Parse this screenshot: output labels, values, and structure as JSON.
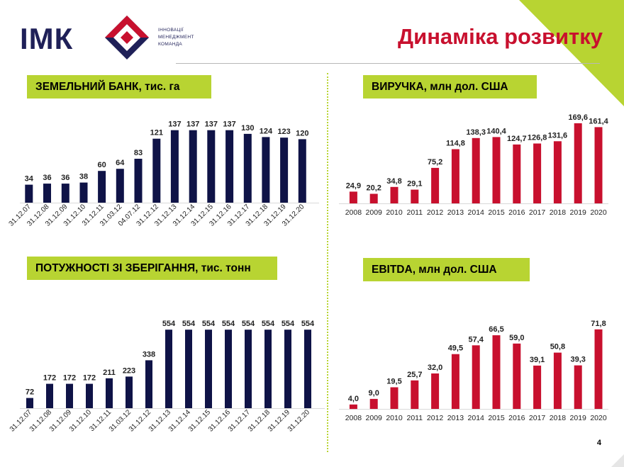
{
  "brand": {
    "logo_text": "ІМК",
    "tagline": [
      "ІННОВАЦІЇ",
      "МЕНЕДЖМЕНТ",
      "КОМАНДА"
    ]
  },
  "page": {
    "title": "Динаміка розвитку",
    "page_number": "4"
  },
  "colors": {
    "navy": "#0f1347",
    "crimson": "#c8102e",
    "lime": "#b8d432"
  },
  "chart_data": [
    {
      "type": "bar",
      "title": "ЗЕМЕЛЬНИЙ БАНК, тис. га",
      "categories": [
        "31.12.07",
        "31.12.08",
        "31.12.09",
        "31.12.10",
        "31.12.11",
        "31.03.12",
        "04.07.12",
        "31.12.12",
        "31.12.13",
        "31.12.14",
        "31.12.15",
        "31.12.16",
        "31.12.17",
        "31.12.18",
        "31.12.19",
        "31.12.20"
      ],
      "values": [
        34,
        36,
        36,
        38,
        60,
        64,
        83,
        121,
        137,
        137,
        137,
        137,
        130,
        124,
        123,
        120
      ],
      "value_labels": [
        "34",
        "36",
        "36",
        "38",
        "60",
        "64",
        "83",
        "121",
        "137",
        "137",
        "137",
        "137",
        "130",
        "124",
        "123",
        "120"
      ],
      "color": "#0f1347",
      "ylim": [
        0,
        150
      ]
    },
    {
      "type": "bar",
      "title": "ВИРУЧКА, млн дол. США",
      "categories": [
        "2008",
        "2009",
        "2010",
        "2011",
        "2012",
        "2013",
        "2014",
        "2015",
        "2016",
        "2017",
        "2018",
        "2019",
        "2020"
      ],
      "values": [
        24.9,
        20.2,
        34.8,
        29.1,
        75.2,
        114.8,
        138.3,
        140.4,
        124.7,
        126.8,
        131.6,
        169.6,
        161.4
      ],
      "value_labels": [
        "24,9",
        "20,2",
        "34,8",
        "29,1",
        "75,2",
        "114,8",
        "138,3",
        "140,4",
        "124,7",
        "126,8",
        "131,6",
        "169,6",
        "161,4"
      ],
      "color": "#c8102e",
      "ylim": [
        0,
        180
      ]
    },
    {
      "type": "bar",
      "title": "ПОТУЖНОСТІ ЗІ ЗБЕРІГАННЯ, тис. тонн",
      "categories": [
        "31.12.07",
        "31.12.08",
        "31.12.09",
        "31.12.10",
        "31.12.11",
        "31.03.12",
        "31.12.12",
        "31.12.13",
        "31.12.14",
        "31.12.15",
        "31.12.16",
        "31.12.17",
        "31.12.18",
        "31.12.19",
        "31.12.20"
      ],
      "values": [
        72,
        172,
        172,
        172,
        211,
        223,
        338,
        554,
        554,
        554,
        554,
        554,
        554,
        554,
        554
      ],
      "value_labels": [
        "72",
        "172",
        "172",
        "172",
        "211",
        "223",
        "338",
        "554",
        "554",
        "554",
        "554",
        "554",
        "554",
        "554",
        "554"
      ],
      "color": "#0f1347",
      "ylim": [
        0,
        600
      ]
    },
    {
      "type": "bar",
      "title": "EBITDA, млн дол. США",
      "categories": [
        "2008",
        "2009",
        "2010",
        "2011",
        "2012",
        "2013",
        "2014",
        "2015",
        "2016",
        "2017",
        "2018",
        "2019",
        "2020"
      ],
      "values": [
        4.0,
        9.0,
        19.5,
        25.7,
        32.0,
        49.5,
        57.4,
        66.5,
        59.0,
        39.1,
        50.8,
        39.3,
        71.8
      ],
      "value_labels": [
        "4,0",
        "9,0",
        "19,5",
        "25,7",
        "32,0",
        "49,5",
        "57,4",
        "66,5",
        "59,0",
        "39,1",
        "50,8",
        "39,3",
        "71,8"
      ],
      "color": "#c8102e",
      "ylim": [
        0,
        80
      ]
    }
  ]
}
